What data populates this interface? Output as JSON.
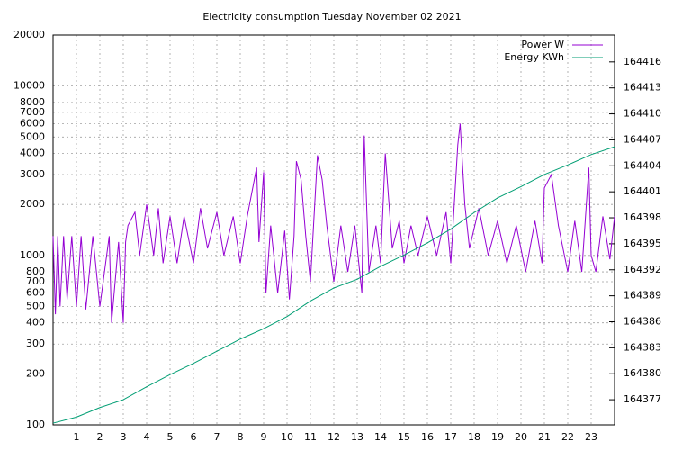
{
  "chart_data": {
    "type": "line",
    "title": "Electricity consumption Tuesday November 02 2021",
    "xlim": [
      0,
      24
    ],
    "xticks": [
      1,
      2,
      3,
      4,
      5,
      6,
      7,
      8,
      9,
      10,
      11,
      12,
      13,
      14,
      15,
      16,
      17,
      18,
      19,
      20,
      21,
      22,
      23
    ],
    "ylim": [
      100,
      20000
    ],
    "log_y": true,
    "yticks": [
      100,
      200,
      300,
      400,
      500,
      600,
      700,
      800,
      1000,
      2000,
      3000,
      4000,
      5000,
      6000,
      7000,
      8000,
      10000,
      20000
    ],
    "y2lim": [
      164374.1,
      164419.1
    ],
    "y2ticks": [
      164377,
      164380,
      164383,
      164386,
      164389,
      164392,
      164395,
      164398,
      164401,
      164404,
      164407,
      164410,
      164413,
      164416
    ],
    "grid": true,
    "legend": "top-right",
    "series": [
      {
        "name": "Power W",
        "color": "#9400d3",
        "x": [
          0,
          0.1,
          0.2,
          0.3,
          0.45,
          0.6,
          0.8,
          1.0,
          1.2,
          1.4,
          1.7,
          2.0,
          2.4,
          2.5,
          2.8,
          3.0,
          3.1,
          3.2,
          3.5,
          3.7,
          4.0,
          4.3,
          4.5,
          4.7,
          5.0,
          5.3,
          5.6,
          6.0,
          6.3,
          6.6,
          7.0,
          7.3,
          7.7,
          8.0,
          8.3,
          8.7,
          8.8,
          9.0,
          9.1,
          9.3,
          9.6,
          9.9,
          10.1,
          10.3,
          10.4,
          10.6,
          10.8,
          11.0,
          11.3,
          11.5,
          11.7,
          12.0,
          12.3,
          12.6,
          12.9,
          13.2,
          13.3,
          13.5,
          13.8,
          14.0,
          14.2,
          14.5,
          14.8,
          15.0,
          15.3,
          15.6,
          16.0,
          16.4,
          16.8,
          17.0,
          17.3,
          17.4,
          17.6,
          17.8,
          18.2,
          18.6,
          19.0,
          19.4,
          19.8,
          20.2,
          20.6,
          20.9,
          21.0,
          21.3,
          21.6,
          22.0,
          22.3,
          22.6,
          22.9,
          23.0,
          23.2,
          23.5,
          23.8,
          24.0
        ],
        "values": [
          1300,
          450,
          1300,
          500,
          1300,
          550,
          1300,
          500,
          1300,
          480,
          1300,
          500,
          1300,
          400,
          1200,
          400,
          1200,
          1500,
          1800,
          1000,
          2000,
          1000,
          1900,
          900,
          1700,
          900,
          1700,
          900,
          1900,
          1100,
          1800,
          1000,
          1700,
          900,
          1700,
          3300,
          1200,
          3100,
          600,
          1500,
          600,
          1400,
          550,
          1300,
          3600,
          2800,
          1300,
          700,
          3900,
          2800,
          1500,
          700,
          1500,
          800,
          1500,
          600,
          5100,
          800,
          1500,
          900,
          4000,
          1100,
          1600,
          900,
          1500,
          1000,
          1700,
          1000,
          1800,
          900,
          4500,
          6000,
          2000,
          1100,
          1900,
          1000,
          1600,
          900,
          1500,
          800,
          1600,
          900,
          2500,
          3000,
          1500,
          800,
          1600,
          800,
          3300,
          1000,
          800,
          1700,
          950,
          1700
        ]
      },
      {
        "name": "Energy KWh",
        "color": "#009e73",
        "axis": "y2",
        "x": [
          0,
          1,
          2,
          3,
          4,
          5,
          6,
          7,
          8,
          9,
          10,
          11,
          12,
          13,
          14,
          15,
          16,
          17,
          18,
          19,
          20,
          21,
          22,
          23,
          24
        ],
        "values": [
          164374.3,
          164375.0,
          164376.1,
          164377.0,
          164378.5,
          164379.9,
          164381.2,
          164382.6,
          164384.0,
          164385.2,
          164386.6,
          164388.4,
          164389.9,
          164390.9,
          164392.4,
          164393.7,
          164395.1,
          164396.7,
          164398.6,
          164400.3,
          164401.6,
          164403.0,
          164404.1,
          164405.3,
          164406.2
        ]
      }
    ]
  }
}
